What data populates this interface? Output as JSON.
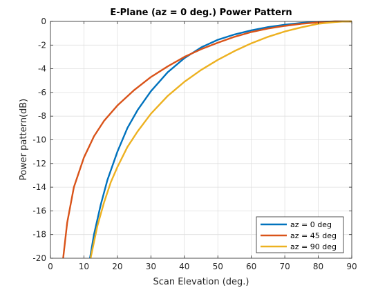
{
  "chart_data": {
    "type": "line",
    "title": "E-Plane (az = 0 deg.) Power Pattern",
    "xlabel": "Scan Elevation (deg.)",
    "ylabel": "Power pattern(dB)",
    "xlim": [
      0,
      90
    ],
    "ylim": [
      -20,
      0
    ],
    "xticks": [
      0,
      10,
      20,
      30,
      40,
      50,
      60,
      70,
      80,
      90
    ],
    "yticks": [
      0,
      -2,
      -4,
      -6,
      -8,
      -10,
      -12,
      -14,
      -16,
      -18,
      -20
    ],
    "grid": true,
    "legend_position": "bottom-right",
    "series": [
      {
        "name": "az = 0 deg",
        "color": "#0072BD",
        "x": [
          11.8,
          13,
          15,
          17,
          20,
          23,
          26,
          30,
          35,
          40,
          45,
          50,
          55,
          60,
          65,
          70,
          75,
          80,
          85,
          88,
          90
        ],
        "y": [
          -20,
          -18,
          -15.5,
          -13.4,
          -11,
          -9,
          -7.5,
          -5.9,
          -4.3,
          -3.1,
          -2.2,
          -1.55,
          -1.1,
          -0.75,
          -0.48,
          -0.28,
          -0.13,
          -0.04,
          0,
          0,
          0
        ]
      },
      {
        "name": "az = 45 deg",
        "color": "#D95319",
        "x": [
          3.8,
          5,
          7,
          10,
          13,
          16,
          20,
          25,
          30,
          35,
          40,
          45,
          50,
          55,
          60,
          65,
          70,
          75,
          80,
          85,
          88,
          90
        ],
        "y": [
          -20,
          -17,
          -14,
          -11.5,
          -9.7,
          -8.4,
          -7.1,
          -5.8,
          -4.7,
          -3.8,
          -3.0,
          -2.35,
          -1.8,
          -1.3,
          -0.9,
          -0.6,
          -0.38,
          -0.2,
          -0.08,
          0,
          0,
          0
        ]
      },
      {
        "name": "az = 90 deg",
        "color": "#EDB120",
        "x": [
          12,
          14,
          16,
          18,
          20,
          23,
          26,
          30,
          35,
          40,
          45,
          50,
          55,
          60,
          65,
          70,
          75,
          80,
          85,
          88,
          90
        ],
        "y": [
          -20,
          -17.3,
          -15.3,
          -13.6,
          -12.3,
          -10.6,
          -9.3,
          -7.8,
          -6.3,
          -5.1,
          -4.1,
          -3.25,
          -2.5,
          -1.85,
          -1.3,
          -0.85,
          -0.5,
          -0.2,
          -0.05,
          0,
          0
        ]
      }
    ]
  }
}
